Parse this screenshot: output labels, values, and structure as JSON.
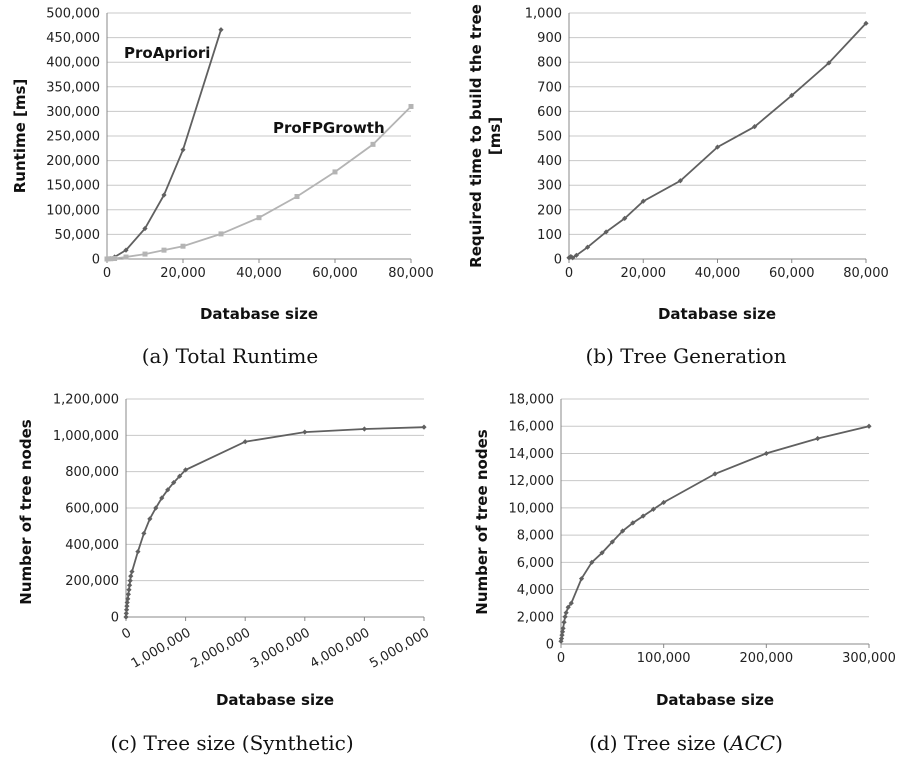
{
  "chart_data": [
    {
      "type": "line",
      "caption": "(a) Total Runtime",
      "xlabel": "Database size",
      "ylabel": "Runtime [ms]",
      "xlim": [
        0,
        80000
      ],
      "ylim": [
        0,
        500000
      ],
      "x_ticks": [
        0,
        20000,
        40000,
        60000,
        80000
      ],
      "x_tick_labels": [
        "0",
        "20,000",
        "40,000",
        "60,000",
        "80,000"
      ],
      "y_ticks": [
        0,
        50000,
        100000,
        150000,
        200000,
        250000,
        300000,
        350000,
        400000,
        450000,
        500000
      ],
      "y_tick_labels": [
        "0",
        "50,000",
        "100,000",
        "150,000",
        "200,000",
        "250,000",
        "300,000",
        "350,000",
        "400,000",
        "450,000",
        "500,000"
      ],
      "grid": true,
      "series": [
        {
          "name": "ProApriori",
          "color": "#606060",
          "marker": "diamond",
          "x": [
            0,
            1000,
            2000,
            5000,
            10000,
            15000,
            20000,
            30000
          ],
          "y": [
            0,
            800,
            4000,
            18000,
            62000,
            130000,
            222000,
            466000
          ]
        },
        {
          "name": "ProFPGrowth",
          "color": "#b4b4b4",
          "marker": "square",
          "x": [
            0,
            1000,
            2000,
            5000,
            10000,
            15000,
            20000,
            30000,
            40000,
            50000,
            60000,
            70000,
            80000
          ],
          "y": [
            0,
            500,
            1000,
            4000,
            10000,
            18000,
            26000,
            51000,
            84000,
            127000,
            177000,
            233000,
            310000
          ]
        }
      ]
    },
    {
      "type": "line",
      "caption": "(b) Tree Generation",
      "xlabel": "Database size",
      "ylabel": "Required time to build the tree [ms]",
      "ylabel_lines": [
        "Required time to build the tree",
        "[ms]"
      ],
      "xlim": [
        0,
        80000
      ],
      "ylim": [
        0,
        1000
      ],
      "x_ticks": [
        0,
        20000,
        40000,
        60000,
        80000
      ],
      "x_tick_labels": [
        "0",
        "20,000",
        "40,000",
        "60,000",
        "80,000"
      ],
      "y_ticks": [
        0,
        100,
        200,
        300,
        400,
        500,
        600,
        700,
        800,
        900,
        1000
      ],
      "y_tick_labels": [
        "0",
        "100",
        "200",
        "300",
        "400",
        "500",
        "600",
        "700",
        "800",
        "900",
        "1,000"
      ],
      "grid": true,
      "series": [
        {
          "color": "#606060",
          "marker": "diamond",
          "x": [
            0,
            500,
            1000,
            2000,
            5000,
            10000,
            15000,
            20000,
            30000,
            40000,
            50000,
            60000,
            70000,
            80000
          ],
          "y": [
            5,
            10,
            5,
            15,
            48,
            110,
            165,
            235,
            318,
            455,
            538,
            665,
            797,
            958
          ]
        }
      ]
    },
    {
      "type": "line",
      "caption": "(c) Tree size (Synthetic)",
      "xlabel": "Database size",
      "ylabel": "Number of tree nodes",
      "xlim": [
        0,
        5000000
      ],
      "ylim": [
        0,
        1200000
      ],
      "x_ticks": [
        0,
        1000000,
        2000000,
        3000000,
        4000000,
        5000000
      ],
      "x_tick_labels": [
        "0",
        "1,000,000",
        "2,000,000",
        "3,000,000",
        "4,000,000",
        "5,000,000"
      ],
      "x_tick_rotation": -30,
      "y_ticks": [
        0,
        200000,
        400000,
        600000,
        800000,
        1000000,
        1200000
      ],
      "y_tick_labels": [
        "0",
        "200,000",
        "400,000",
        "600,000",
        "800,000",
        "1,000,000",
        "1,200,000"
      ],
      "grid": true,
      "series": [
        {
          "color": "#606060",
          "marker": "diamond",
          "x": [
            0,
            5000,
            10000,
            15000,
            20000,
            30000,
            40000,
            50000,
            60000,
            70000,
            80000,
            100000,
            200000,
            300000,
            400000,
            500000,
            600000,
            700000,
            800000,
            900000,
            1000000,
            2000000,
            3000000,
            4000000,
            5000000
          ],
          "y": [
            0,
            20000,
            40000,
            60000,
            80000,
            100000,
            125000,
            150000,
            175000,
            200000,
            225000,
            250000,
            360000,
            460000,
            540000,
            600000,
            655000,
            700000,
            740000,
            775000,
            810000,
            965000,
            1018000,
            1035000,
            1045000
          ]
        }
      ]
    },
    {
      "type": "line",
      "caption": "(d) Tree size (ACC)",
      "caption_prefix": "(d) Tree size (",
      "caption_italic": "ACC",
      "caption_suffix": ")",
      "xlabel": "Database size",
      "ylabel": "Number of tree nodes",
      "xlim": [
        0,
        300000
      ],
      "ylim": [
        0,
        18000
      ],
      "x_ticks": [
        0,
        100000,
        200000,
        300000
      ],
      "x_tick_labels": [
        "0",
        "100,000",
        "200,000",
        "300,000"
      ],
      "y_ticks": [
        0,
        2000,
        4000,
        6000,
        8000,
        10000,
        12000,
        14000,
        16000,
        18000
      ],
      "y_tick_labels": [
        "0",
        "2,000",
        "4,000",
        "6,000",
        "8,000",
        "10,000",
        "12,000",
        "14,000",
        "16,000",
        "18,000"
      ],
      "grid": true,
      "series": [
        {
          "color": "#606060",
          "marker": "diamond",
          "x": [
            0,
            500,
            1000,
            1500,
            2000,
            3000,
            4000,
            5000,
            7000,
            10000,
            20000,
            30000,
            40000,
            50000,
            60000,
            70000,
            80000,
            90000,
            100000,
            150000,
            200000,
            250000,
            300000
          ],
          "y": [
            200,
            400,
            650,
            900,
            1150,
            1600,
            2000,
            2300,
            2700,
            3000,
            4800,
            6000,
            6700,
            7500,
            8300,
            8900,
            9400,
            9900,
            10400,
            12500,
            14000,
            15100,
            16000
          ]
        }
      ]
    }
  ]
}
